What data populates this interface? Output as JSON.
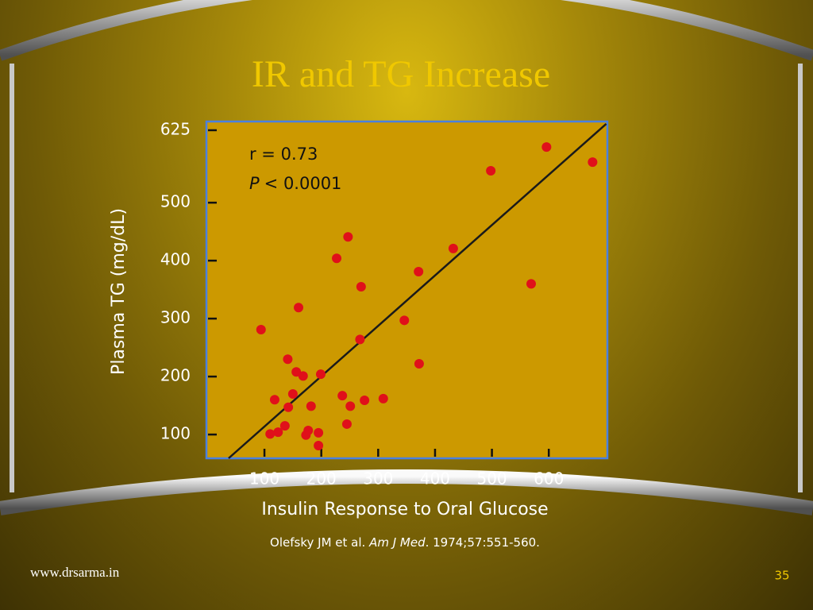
{
  "title": "IR and TG Increase",
  "chart_data": {
    "type": "scatter",
    "xlabel": "Insulin Response to Oral Glucose",
    "ylabel": "Plasma TG (mg/dL)",
    "annotations": {
      "r": "r = 0.73",
      "p_symbol": "P",
      "p_value": "< 0.0001"
    },
    "xlim": [
      -2,
      703
    ],
    "ylim": [
      59,
      640
    ],
    "xticks": [
      100,
      200,
      300,
      400,
      500,
      600
    ],
    "yticks": [
      100,
      200,
      300,
      400,
      500,
      625
    ],
    "color": "#e0101a",
    "background": "#cc9900",
    "frame": "#4a80e0",
    "x": [
      596,
      677,
      498,
      432,
      371,
      569,
      247,
      227,
      270,
      160,
      346,
      94,
      268,
      372,
      141,
      156,
      168,
      199,
      150,
      237,
      118,
      142,
      182,
      251,
      276,
      309,
      245,
      136,
      124,
      110,
      177,
      173,
      195,
      195
    ],
    "y": [
      596,
      570,
      555,
      421,
      381,
      360,
      441,
      404,
      355,
      319,
      297,
      281,
      264,
      222,
      230,
      208,
      201,
      204,
      170,
      167,
      160,
      147,
      149,
      149,
      159,
      162,
      118,
      115,
      104,
      101,
      107,
      99,
      103,
      81
    ],
    "trendline": {
      "x": [
        37,
        701
      ],
      "y": [
        59,
        636
      ],
      "color": "#1a1a1a"
    }
  },
  "citation": {
    "authors": "Olefsky JM et al. ",
    "journal": "Am J Med",
    "details": ". 1974;57:551-560."
  },
  "footer": {
    "website": "www.drsarma.in",
    "page": "35"
  }
}
